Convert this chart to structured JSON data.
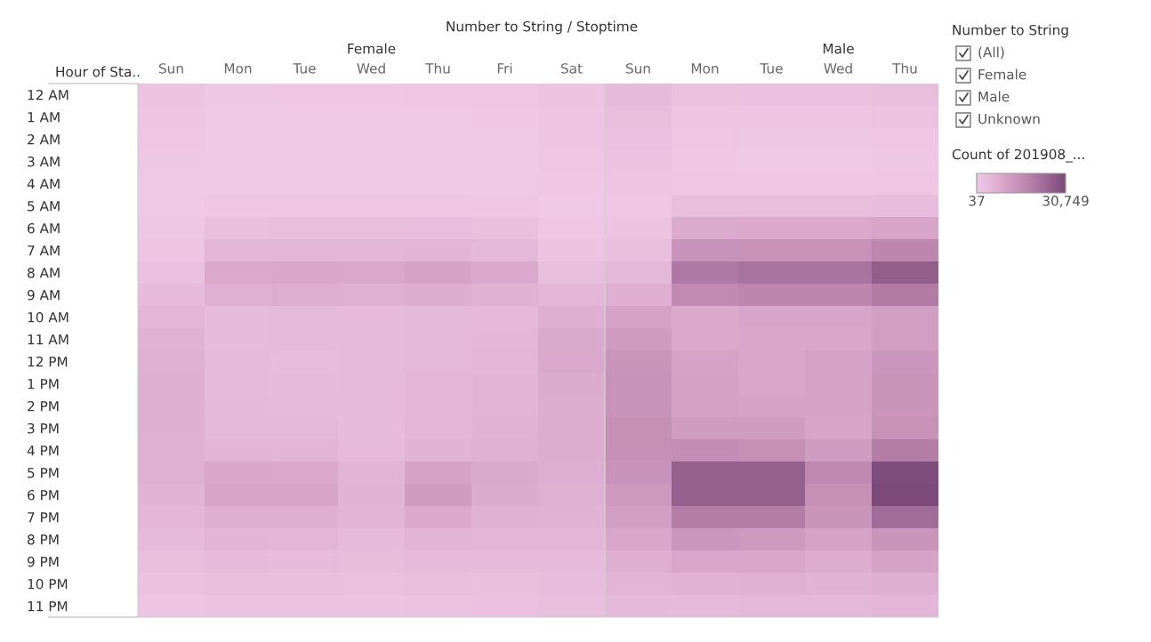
{
  "chart_data": {
    "type": "heatmap",
    "title": "Number to String / Stoptime",
    "ylabel": "Hour of Sta..",
    "legend_title": "Number to String",
    "clabel": "Count of 201908_...",
    "annotations": [
      "Female",
      "Male",
      "(All)",
      "Female",
      "Male",
      "Unknown"
    ],
    "categories": [
      "Sun",
      "Mon",
      "Tue",
      "Wed",
      "Thu",
      "Fri",
      "Sat",
      "Sun",
      "Mon",
      "Tue",
      "Wed",
      "Thu"
    ],
    "y_categories": [
      "12 AM",
      "1 AM",
      "2 AM",
      "3 AM",
      "4 AM",
      "5 AM",
      "6 AM",
      "7 AM",
      "8 AM",
      "9 AM",
      "10 AM",
      "11 AM",
      "12 PM",
      "1 PM",
      "2 PM",
      "3 PM",
      "4 PM",
      "5 PM",
      "6 PM",
      "7 PM",
      "8 PM",
      "9 PM",
      "10 PM",
      "11 PM"
    ],
    "cells": [
      [
        1500,
        700,
        600,
        600,
        800,
        900,
        1800,
        4000,
        2500,
        2200,
        2300,
        3000
      ],
      [
        1200,
        400,
        350,
        350,
        450,
        550,
        1400,
        3000,
        1300,
        1200,
        1200,
        1500
      ],
      [
        900,
        250,
        200,
        200,
        250,
        300,
        1000,
        2300,
        800,
        700,
        700,
        900
      ],
      [
        700,
        200,
        150,
        150,
        200,
        250,
        800,
        1700,
        600,
        500,
        500,
        700
      ],
      [
        500,
        250,
        250,
        250,
        250,
        300,
        600,
        1100,
        800,
        800,
        800,
        900
      ],
      [
        450,
        800,
        800,
        800,
        900,
        800,
        450,
        900,
        3000,
        3100,
        3100,
        3400
      ],
      [
        700,
        2800,
        3000,
        3000,
        3200,
        2600,
        900,
        1500,
        8000,
        8500,
        8500,
        9500
      ],
      [
        1300,
        5000,
        5300,
        5300,
        5600,
        4700,
        1800,
        2700,
        14000,
        14500,
        14500,
        17000
      ],
      [
        2200,
        8500,
        9000,
        8800,
        10000,
        8400,
        3000,
        4500,
        20000,
        21500,
        21500,
        26000
      ],
      [
        3800,
        6600,
        7200,
        6800,
        7500,
        6500,
        4800,
        7000,
        16000,
        17000,
        17000,
        19500
      ],
      [
        5200,
        3800,
        4000,
        4000,
        4400,
        4300,
        7000,
        10000,
        8500,
        9500,
        9500,
        11000
      ],
      [
        6200,
        3800,
        4100,
        4000,
        4500,
        4800,
        8300,
        12000,
        8500,
        9000,
        9000,
        11000
      ],
      [
        6800,
        4000,
        3500,
        4100,
        4700,
        5300,
        8700,
        13500,
        10000,
        9000,
        10000,
        13000
      ],
      [
        6900,
        4200,
        3700,
        3900,
        5000,
        5500,
        7600,
        14000,
        10500,
        9000,
        10000,
        13500
      ],
      [
        6900,
        4300,
        4100,
        3900,
        5000,
        5600,
        7500,
        14000,
        10500,
        10000,
        10000,
        13500
      ],
      [
        6900,
        4600,
        4600,
        3700,
        5000,
        6200,
        7500,
        15000,
        11500,
        11500,
        9500,
        14500
      ],
      [
        6800,
        5400,
        5500,
        4000,
        6000,
        6800,
        7400,
        15000,
        15500,
        15000,
        11500,
        19000
      ],
      [
        6800,
        9000,
        8400,
        5600,
        10000,
        8300,
        7200,
        14000,
        25500,
        25500,
        16500,
        30000
      ],
      [
        5800,
        9600,
        9600,
        5800,
        11500,
        7800,
        6800,
        12500,
        25500,
        25500,
        15000,
        30749
      ],
      [
        5200,
        7100,
        6900,
        5400,
        8400,
        6400,
        6200,
        11000,
        19000,
        19000,
        13500,
        23000
      ],
      [
        4000,
        5600,
        5200,
        4100,
        5400,
        5200,
        5200,
        9000,
        13000,
        12500,
        10000,
        13500
      ],
      [
        3000,
        3900,
        3800,
        3300,
        4000,
        3900,
        4200,
        7000,
        9000,
        9000,
        7500,
        10000
      ],
      [
        2100,
        2600,
        2700,
        2500,
        3000,
        2900,
        3500,
        5500,
        5700,
        6500,
        6000,
        7000
      ],
      [
        1300,
        1500,
        1600,
        1700,
        2000,
        2200,
        2800,
        4300,
        4000,
        4500,
        4500,
        5000
      ]
    ],
    "clim": [
      37,
      30749
    ],
    "cticks": [
      {
        "value": 37,
        "label": "37"
      },
      {
        "value": 30749,
        "label": "30,749"
      }
    ]
  }
}
